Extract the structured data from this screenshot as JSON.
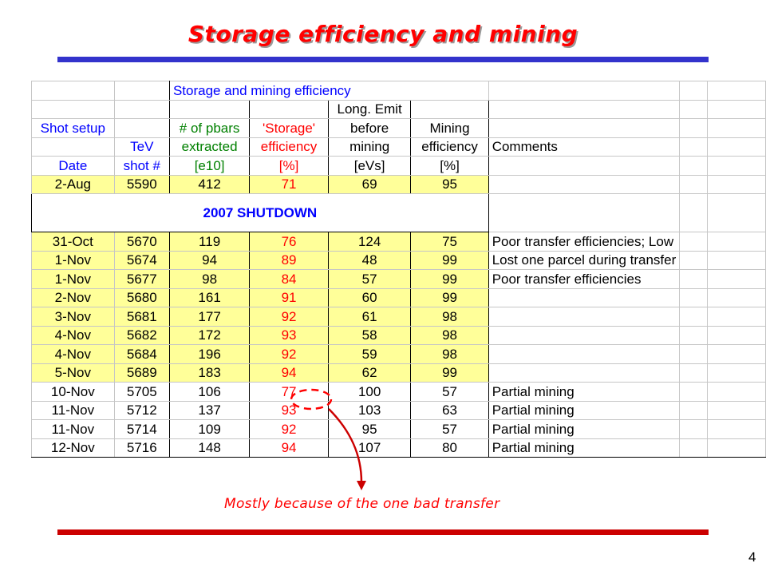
{
  "slide": {
    "title": "Storage efficiency and mining",
    "page_number": "4",
    "annotation": "Mostly because of the one bad transfer",
    "colors": {
      "title": "#ff0000",
      "top_rule": "#3333cc",
      "bottom_rule": "#cc0000",
      "highlight": "#ffff99"
    }
  },
  "sheet": {
    "title": "Storage and mining efficiency",
    "headers": {
      "row1": [
        "",
        "",
        "",
        "",
        "Long. Emit",
        "",
        "",
        "",
        ""
      ],
      "row2": [
        "Shot setup",
        "",
        "# of pbars",
        "'Storage'",
        "before",
        "Mining",
        "",
        "",
        ""
      ],
      "row3": [
        "",
        "TeV",
        "extracted",
        "efficiency",
        "mining",
        "efficiency",
        "Comments",
        "",
        ""
      ],
      "row4": [
        "Date",
        "shot #",
        "[e10]",
        "[%]",
        "[eVs]",
        "[%]",
        "",
        "",
        ""
      ]
    },
    "first_row": {
      "date": "2-Aug",
      "shot": "5590",
      "pbars": "412",
      "storage": "71",
      "emit": "69",
      "mining": "95",
      "comment": ""
    },
    "shutdown_label": "2007 SHUTDOWN",
    "rows": [
      {
        "date": "31-Oct",
        "shot": "5670",
        "pbars": "119",
        "storage": "76",
        "emit": "124",
        "mining": "75",
        "comment": "Poor transfer efficiencies; Low",
        "highlight": true
      },
      {
        "date": "1-Nov",
        "shot": "5674",
        "pbars": "94",
        "storage": "89",
        "emit": "48",
        "mining": "99",
        "comment": "Lost one parcel during transfer",
        "highlight": true
      },
      {
        "date": "1-Nov",
        "shot": "5677",
        "pbars": "98",
        "storage": "84",
        "emit": "57",
        "mining": "99",
        "comment": "Poor transfer efficiencies",
        "highlight": true
      },
      {
        "date": "2-Nov",
        "shot": "5680",
        "pbars": "161",
        "storage": "91",
        "emit": "60",
        "mining": "99",
        "comment": "",
        "highlight": true
      },
      {
        "date": "3-Nov",
        "shot": "5681",
        "pbars": "177",
        "storage": "92",
        "emit": "61",
        "mining": "98",
        "comment": "",
        "highlight": true
      },
      {
        "date": "4-Nov",
        "shot": "5682",
        "pbars": "172",
        "storage": "93",
        "emit": "58",
        "mining": "98",
        "comment": "",
        "highlight": true
      },
      {
        "date": "4-Nov",
        "shot": "5684",
        "pbars": "196",
        "storage": "92",
        "emit": "59",
        "mining": "98",
        "comment": "",
        "highlight": true
      },
      {
        "date": "5-Nov",
        "shot": "5689",
        "pbars": "183",
        "storage": "94",
        "emit": "62",
        "mining": "99",
        "comment": "",
        "highlight": true
      },
      {
        "date": "10-Nov",
        "shot": "5705",
        "pbars": "106",
        "storage": "77",
        "emit": "100",
        "mining": "57",
        "comment": "Partial mining",
        "highlight": false
      },
      {
        "date": "11-Nov",
        "shot": "5712",
        "pbars": "137",
        "storage": "93",
        "emit": "103",
        "mining": "63",
        "comment": "Partial mining",
        "highlight": false
      },
      {
        "date": "11-Nov",
        "shot": "5714",
        "pbars": "109",
        "storage": "92",
        "emit": "95",
        "mining": "57",
        "comment": "Partial mining",
        "highlight": false
      },
      {
        "date": "12-Nov",
        "shot": "5716",
        "pbars": "148",
        "storage": "94",
        "emit": "107",
        "mining": "80",
        "comment": "Partial mining",
        "highlight": false
      }
    ]
  }
}
